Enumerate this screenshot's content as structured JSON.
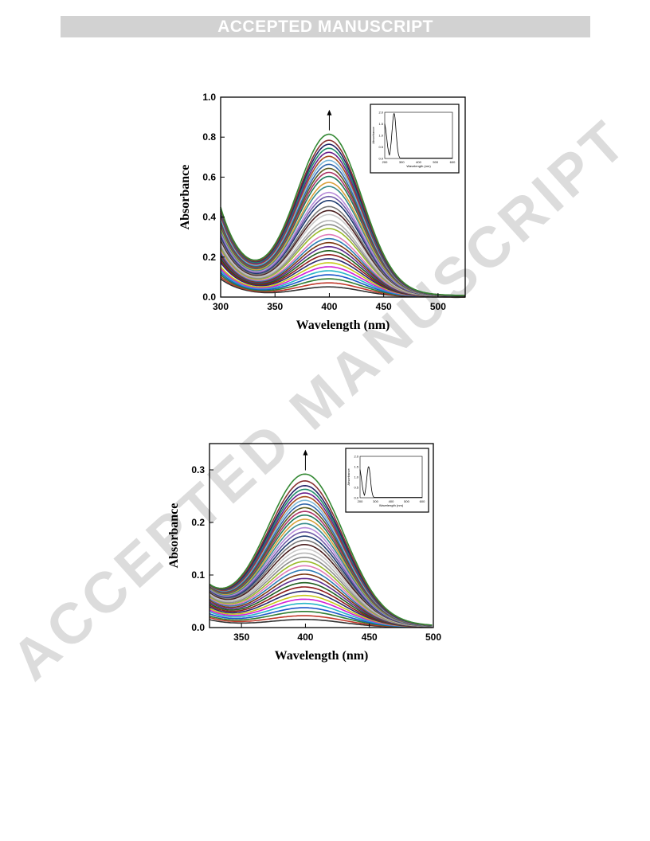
{
  "banner": {
    "text": "ACCEPTED MANUSCRIPT"
  },
  "watermark": {
    "text": "ACCEPTED MANUSCRIPT",
    "color": "#dcdcdc"
  },
  "series_colors": [
    "#333333",
    "#c0392b",
    "#2e7d32",
    "#1a56c9",
    "#26b5c8",
    "#d21fd6",
    "#c7c71b",
    "#2a2a6e",
    "#8e1b1b",
    "#1f5f1f",
    "#5d2a8c",
    "#7a3a10",
    "#2d7db4",
    "#e07bb8",
    "#9bbb2a",
    "#8c8c8c",
    "#b5b5b5",
    "#c9c9c9",
    "#4a1f1f",
    "#777777",
    "#1c3a6e",
    "#6e5aa6",
    "#b78bd9",
    "#3a8c8c",
    "#d9a03a",
    "#1f7a5a",
    "#aa3366",
    "#5a5a1f",
    "#3366aa",
    "#7db8d9",
    "#a64d1f",
    "#6a1f8c",
    "#1f8c6a",
    "#222266",
    "#883333",
    "#338833"
  ],
  "charts": [
    {
      "chart_data": {
        "type": "line",
        "xlabel": "Wavelength (nm)",
        "ylabel": "Absorbance",
        "xlim": [
          300,
          525
        ],
        "ylim": [
          0.0,
          1.0
        ],
        "xticks": [
          300,
          350,
          400,
          450,
          500
        ],
        "yticks": [
          0.0,
          0.2,
          0.4,
          0.6,
          0.8,
          1.0
        ],
        "ytick_labels": [
          "0.0",
          "0.2",
          "0.4",
          "0.6",
          "0.8",
          "1.0"
        ],
        "peak_x": 400,
        "arrow_direction": "up",
        "series_count": 36,
        "peak_values": [
          0.05,
          0.07,
          0.09,
          0.11,
          0.13,
          0.15,
          0.17,
          0.19,
          0.21,
          0.23,
          0.25,
          0.27,
          0.29,
          0.31,
          0.34,
          0.36,
          0.38,
          0.41,
          0.43,
          0.45,
          0.48,
          0.5,
          0.52,
          0.55,
          0.57,
          0.6,
          0.62,
          0.64,
          0.66,
          0.68,
          0.7,
          0.72,
          0.74,
          0.76,
          0.78,
          0.81
        ],
        "values_at_300": [
          0.09,
          0.1,
          0.11,
          0.12,
          0.13,
          0.14,
          0.15,
          0.17,
          0.18,
          0.19,
          0.2,
          0.21,
          0.22,
          0.23,
          0.24,
          0.25,
          0.26,
          0.27,
          0.28,
          0.29,
          0.3,
          0.31,
          0.32,
          0.33,
          0.34,
          0.35,
          0.36,
          0.37,
          0.38,
          0.39,
          0.4,
          0.41,
          0.42,
          0.43,
          0.43,
          0.44
        ],
        "min_x": 325,
        "grid": false,
        "inset": {
          "type": "line",
          "xticks": [
            200,
            300,
            400,
            500,
            600
          ],
          "yticks": [
            "0.0",
            "0.5",
            "1.0",
            "1.5",
            "2.0"
          ],
          "xlabel": "Wavelength (nm)",
          "ylabel": "Absorbance",
          "xlim": [
            200,
            600
          ],
          "ylim": [
            0,
            2
          ],
          "peak_x": 255,
          "peak_y": 1.95
        }
      }
    },
    {
      "chart_data": {
        "type": "line",
        "xlabel": "Wavelength (nm)",
        "ylabel": "Absorbance",
        "xlim": [
          325,
          500
        ],
        "ylim": [
          0.0,
          0.35
        ],
        "xticks": [
          350,
          400,
          450,
          500
        ],
        "yticks": [
          0.0,
          0.1,
          0.2,
          0.3
        ],
        "ytick_labels": [
          "0.0",
          "0.1",
          "0.2",
          "0.3"
        ],
        "peak_x": 400,
        "arrow_direction": "up",
        "series_count": 36,
        "peak_values": [
          0.015,
          0.022,
          0.03,
          0.037,
          0.045,
          0.053,
          0.06,
          0.068,
          0.076,
          0.084,
          0.092,
          0.1,
          0.108,
          0.116,
          0.124,
          0.132,
          0.14,
          0.148,
          0.156,
          0.164,
          0.172,
          0.18,
          0.188,
          0.196,
          0.204,
          0.212,
          0.219,
          0.226,
          0.233,
          0.24,
          0.247,
          0.254,
          0.261,
          0.268,
          0.277,
          0.29
        ],
        "values_at_325": [
          0.015,
          0.019,
          0.022,
          0.026,
          0.03,
          0.033,
          0.036,
          0.039,
          0.042,
          0.045,
          0.048,
          0.051,
          0.054,
          0.056,
          0.058,
          0.06,
          0.062,
          0.064,
          0.066,
          0.068,
          0.07,
          0.071,
          0.072,
          0.073,
          0.074,
          0.075,
          0.076,
          0.077,
          0.078,
          0.079,
          0.079,
          0.08,
          0.08,
          0.08,
          0.08,
          0.08
        ],
        "min_x": 337,
        "grid": false,
        "inset": {
          "type": "line",
          "xticks": [
            200,
            300,
            400,
            500,
            600
          ],
          "yticks": [
            "0.0",
            "0.5",
            "1.0",
            "1.5",
            "2.0"
          ],
          "xlabel": "Wavelength (nm)",
          "ylabel": "Absorbance",
          "xlim": [
            200,
            600
          ],
          "ylim": [
            0,
            2
          ],
          "peak_x": 255,
          "peak_y": 1.5
        }
      }
    }
  ]
}
